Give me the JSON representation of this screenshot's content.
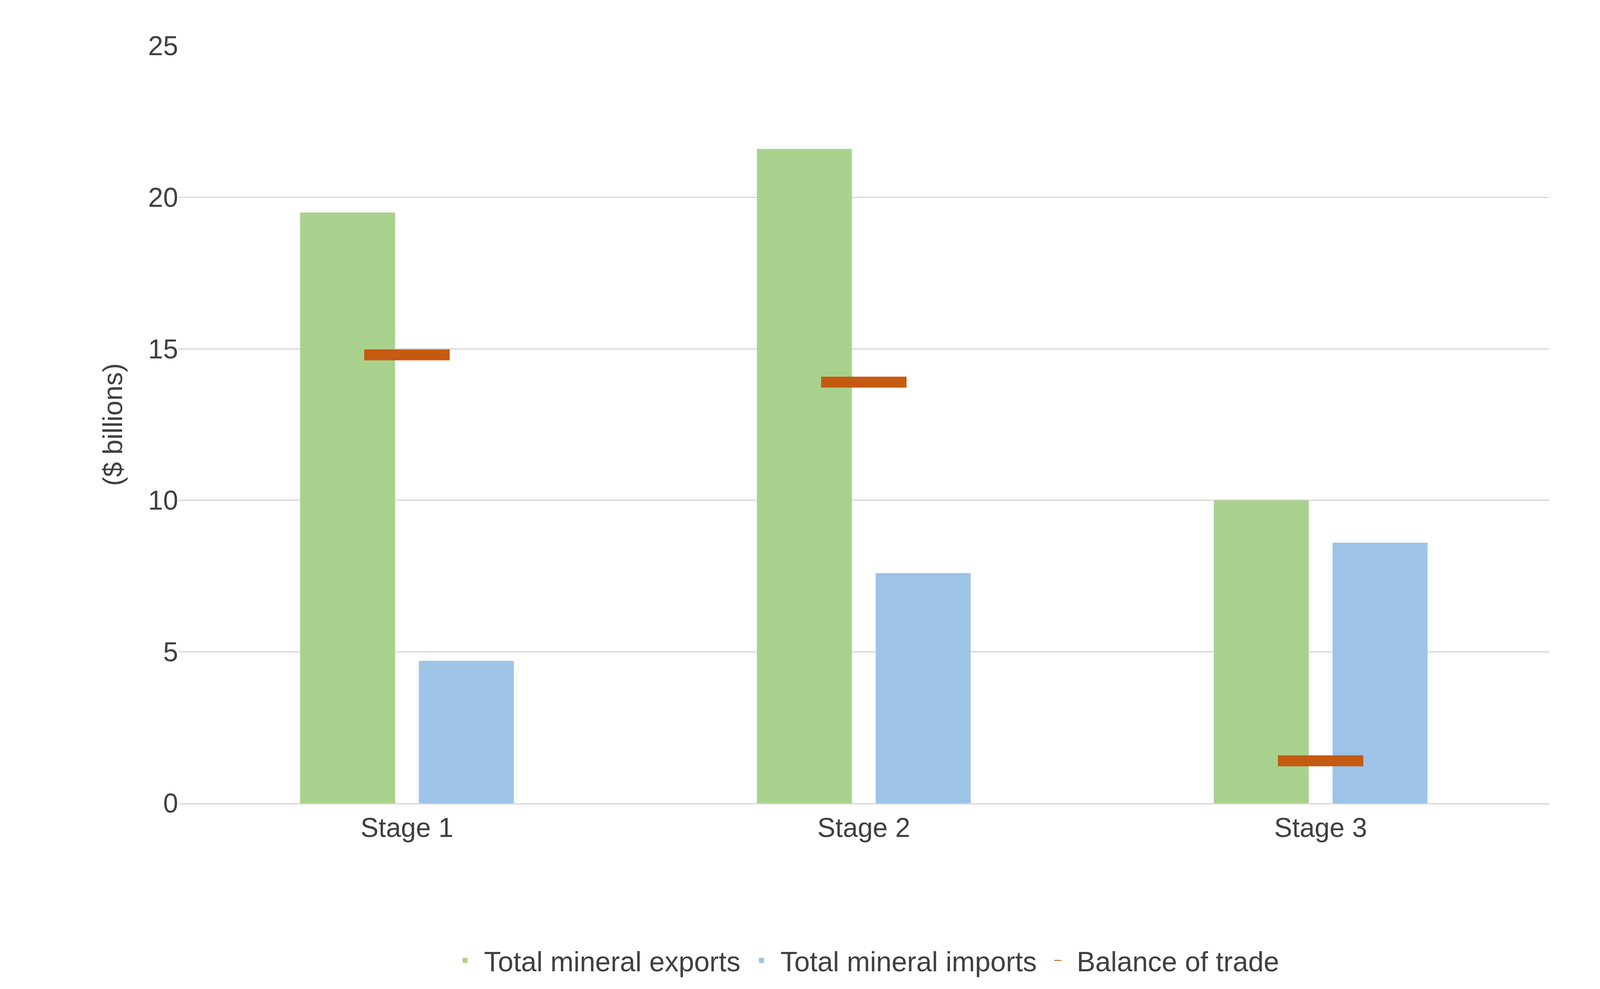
{
  "chart_data": {
    "type": "bar",
    "y_label": "($ billions)",
    "categories": [
      "Stage 1",
      "Stage 2",
      "Stage 3"
    ],
    "series": [
      {
        "name": "Total mineral exports",
        "type": "bar",
        "color": "#a9d18e",
        "values": [
          19.5,
          21.6,
          10.0
        ]
      },
      {
        "name": "Total mineral imports",
        "type": "bar",
        "color": "#9dc3e6",
        "values": [
          4.7,
          7.6,
          8.6
        ]
      },
      {
        "name": "Balance of trade",
        "type": "scatter",
        "marker": "dash",
        "color": "#c55a11",
        "values": [
          14.8,
          13.9,
          1.4
        ]
      }
    ],
    "ylim": [
      0,
      25
    ],
    "yticks": [
      0,
      5,
      10,
      15,
      20,
      25
    ],
    "grid": true,
    "legend": "bottom"
  }
}
